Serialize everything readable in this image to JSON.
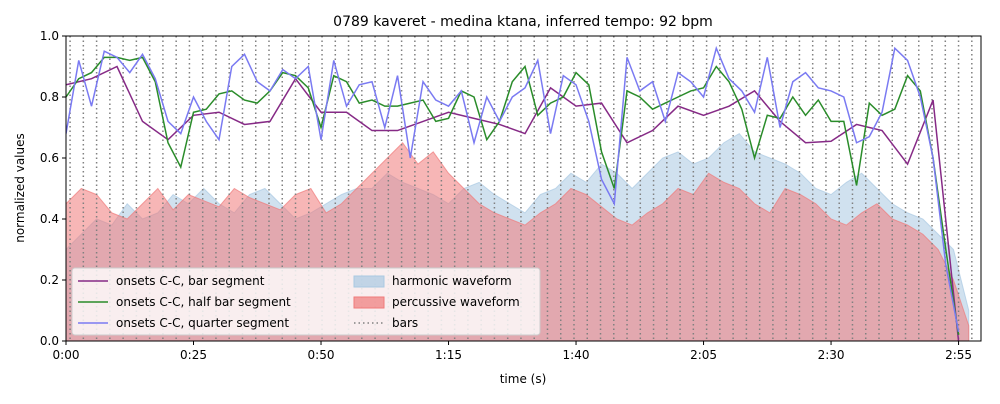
{
  "chart_data": {
    "type": "line",
    "title": "0789 kaveret - medina ktana, inferred tempo: 92 bpm",
    "xlabel": "time (s)",
    "ylabel": "normalized values",
    "xlim": [
      0,
      179.4
    ],
    "ylim": [
      0,
      1
    ],
    "xticks": [
      {
        "value": 0,
        "label": "0:00"
      },
      {
        "value": 25,
        "label": "0:25"
      },
      {
        "value": 50,
        "label": "0:50"
      },
      {
        "value": 75,
        "label": "1:15"
      },
      {
        "value": 100,
        "label": "1:40"
      },
      {
        "value": 125,
        "label": "2:05"
      },
      {
        "value": 150,
        "label": "2:30"
      },
      {
        "value": 175,
        "label": "2:55"
      }
    ],
    "yticks": [
      {
        "value": 0,
        "label": "0.0"
      },
      {
        "value": 0.2,
        "label": "0.2"
      },
      {
        "value": 0.4,
        "label": "0.4"
      },
      {
        "value": 0.6,
        "label": "0.6"
      },
      {
        "value": 0.8,
        "label": "0.8"
      },
      {
        "value": 1,
        "label": "1.0"
      }
    ],
    "legend": "lower left",
    "series": [
      {
        "name": "onsets C-C, bar segment",
        "style": "line",
        "color": "#862a86",
        "x": [
          0,
          5,
          10,
          15,
          20,
          25,
          30,
          35,
          40,
          45,
          50,
          55,
          60,
          65,
          70,
          75,
          80,
          85,
          90,
          95,
          100,
          105,
          110,
          115,
          120,
          125,
          130,
          135,
          140,
          145,
          150,
          155,
          160,
          165,
          170,
          175
        ],
        "values": [
          0.84,
          0.86,
          0.9,
          0.72,
          0.66,
          0.74,
          0.75,
          0.71,
          0.72,
          0.86,
          0.75,
          0.75,
          0.69,
          0.69,
          0.72,
          0.75,
          0.73,
          0.71,
          0.68,
          0.83,
          0.77,
          0.78,
          0.65,
          0.69,
          0.77,
          0.74,
          0.77,
          0.82,
          0.72,
          0.65,
          0.655,
          0.71,
          0.69,
          0.58,
          0.79,
          0.0
        ]
      },
      {
        "name": "onsets C-C, half bar segment",
        "style": "line",
        "color": "#2a8c2a",
        "x": [
          0,
          2.5,
          5,
          7.5,
          10,
          12.5,
          15,
          17.5,
          20,
          22.5,
          25,
          27.5,
          30,
          32.5,
          35,
          37.5,
          40,
          42.5,
          45,
          47.5,
          50,
          52.5,
          55,
          57.5,
          60,
          62.5,
          65,
          67.5,
          70,
          72.5,
          75,
          77.5,
          80,
          82.5,
          85,
          87.5,
          90,
          92.5,
          95,
          97.5,
          100,
          102.5,
          105,
          107.5,
          110,
          112.5,
          115,
          117.5,
          120,
          122.5,
          125,
          127.5,
          130,
          132.5,
          135,
          137.5,
          140,
          142.5,
          145,
          147.5,
          150,
          152.5,
          155,
          157.5,
          160,
          162.5,
          165,
          167.5,
          170,
          172.5,
          175
        ],
        "values": [
          0.8,
          0.86,
          0.88,
          0.93,
          0.93,
          0.92,
          0.93,
          0.85,
          0.65,
          0.57,
          0.75,
          0.76,
          0.81,
          0.82,
          0.79,
          0.78,
          0.82,
          0.88,
          0.87,
          0.83,
          0.7,
          0.87,
          0.85,
          0.78,
          0.79,
          0.77,
          0.77,
          0.78,
          0.79,
          0.72,
          0.73,
          0.82,
          0.8,
          0.66,
          0.72,
          0.85,
          0.9,
          0.74,
          0.78,
          0.8,
          0.88,
          0.84,
          0.62,
          0.5,
          0.82,
          0.8,
          0.76,
          0.78,
          0.8,
          0.82,
          0.83,
          0.9,
          0.85,
          0.76,
          0.6,
          0.74,
          0.73,
          0.8,
          0.74,
          0.79,
          0.72,
          0.72,
          0.51,
          0.78,
          0.74,
          0.76,
          0.87,
          0.82,
          0.6,
          0.3,
          0.02
        ]
      },
      {
        "name": "onsets C-C, quarter segment",
        "style": "line",
        "color": "#7a7af2",
        "x": [
          0,
          2.5,
          5,
          7.5,
          10,
          12.5,
          15,
          17.5,
          20,
          22.5,
          25,
          27.5,
          30,
          32.5,
          35,
          37.5,
          40,
          42.5,
          45,
          47.5,
          50,
          52.5,
          55,
          57.5,
          60,
          62.5,
          65,
          67.5,
          70,
          72.5,
          75,
          77.5,
          80,
          82.5,
          85,
          87.5,
          90,
          92.5,
          95,
          97.5,
          100,
          102.5,
          105,
          107.5,
          110,
          112.5,
          115,
          117.5,
          120,
          122.5,
          125,
          127.5,
          130,
          132.5,
          135,
          137.5,
          140,
          142.5,
          145,
          147.5,
          150,
          152.5,
          155,
          157.5,
          160,
          162.5,
          165,
          167.5,
          170,
          172.5,
          175
        ],
        "values": [
          0.68,
          0.92,
          0.77,
          0.95,
          0.93,
          0.88,
          0.94,
          0.86,
          0.72,
          0.68,
          0.8,
          0.72,
          0.66,
          0.9,
          0.94,
          0.85,
          0.82,
          0.89,
          0.86,
          0.9,
          0.66,
          0.92,
          0.77,
          0.84,
          0.85,
          0.7,
          0.87,
          0.6,
          0.85,
          0.79,
          0.77,
          0.82,
          0.65,
          0.8,
          0.72,
          0.8,
          0.83,
          0.92,
          0.68,
          0.87,
          0.84,
          0.72,
          0.53,
          0.45,
          0.93,
          0.82,
          0.85,
          0.72,
          0.88,
          0.85,
          0.8,
          0.96,
          0.86,
          0.82,
          0.75,
          0.93,
          0.7,
          0.85,
          0.88,
          0.83,
          0.82,
          0.8,
          0.65,
          0.67,
          0.75,
          0.96,
          0.92,
          0.8,
          0.6,
          0.25,
          0.03
        ]
      },
      {
        "name": "harmonic waveform",
        "style": "fill",
        "color": "#a9c9e2",
        "x": [
          0,
          3,
          6,
          9,
          12,
          15,
          18,
          21,
          24,
          27,
          30,
          33,
          36,
          39,
          42,
          45,
          48,
          51,
          54,
          57,
          60,
          63,
          66,
          69,
          72,
          75,
          78,
          81,
          84,
          87,
          90,
          93,
          96,
          99,
          102,
          105,
          108,
          111,
          114,
          117,
          120,
          123,
          126,
          129,
          132,
          135,
          138,
          141,
          144,
          147,
          150,
          153,
          156,
          159,
          162,
          165,
          168,
          171,
          174,
          177
        ],
        "values": [
          0.3,
          0.35,
          0.4,
          0.38,
          0.45,
          0.4,
          0.42,
          0.48,
          0.45,
          0.5,
          0.45,
          0.42,
          0.48,
          0.5,
          0.45,
          0.4,
          0.42,
          0.45,
          0.48,
          0.5,
          0.5,
          0.55,
          0.52,
          0.5,
          0.48,
          0.45,
          0.5,
          0.52,
          0.48,
          0.45,
          0.42,
          0.48,
          0.5,
          0.55,
          0.52,
          0.58,
          0.55,
          0.5,
          0.55,
          0.6,
          0.62,
          0.58,
          0.6,
          0.65,
          0.68,
          0.62,
          0.6,
          0.58,
          0.55,
          0.5,
          0.48,
          0.52,
          0.55,
          0.5,
          0.45,
          0.42,
          0.4,
          0.35,
          0.3,
          0.1
        ]
      },
      {
        "name": "percussive waveform",
        "style": "fill",
        "color": "#f07a7a",
        "x": [
          0,
          3,
          6,
          9,
          12,
          15,
          18,
          21,
          24,
          27,
          30,
          33,
          36,
          39,
          42,
          45,
          48,
          51,
          54,
          57,
          60,
          63,
          66,
          69,
          72,
          75,
          78,
          81,
          84,
          87,
          90,
          93,
          96,
          99,
          102,
          105,
          108,
          111,
          114,
          117,
          120,
          123,
          126,
          129,
          132,
          135,
          138,
          141,
          144,
          147,
          150,
          153,
          156,
          159,
          162,
          165,
          168,
          171,
          174,
          177
        ],
        "values": [
          0.45,
          0.5,
          0.48,
          0.42,
          0.4,
          0.45,
          0.5,
          0.43,
          0.48,
          0.46,
          0.44,
          0.5,
          0.47,
          0.45,
          0.43,
          0.48,
          0.5,
          0.42,
          0.45,
          0.5,
          0.55,
          0.6,
          0.65,
          0.58,
          0.62,
          0.55,
          0.5,
          0.45,
          0.42,
          0.4,
          0.38,
          0.42,
          0.45,
          0.5,
          0.48,
          0.44,
          0.4,
          0.38,
          0.42,
          0.45,
          0.5,
          0.48,
          0.55,
          0.52,
          0.5,
          0.45,
          0.42,
          0.5,
          0.48,
          0.45,
          0.4,
          0.38,
          0.42,
          0.45,
          0.4,
          0.38,
          0.35,
          0.3,
          0.2,
          0.05
        ]
      },
      {
        "name": "bars",
        "style": "vline",
        "color": "#808080",
        "x": [
          0.8,
          3.4,
          6.0,
          8.6,
          11.2,
          13.8,
          16.4,
          19.0,
          21.6,
          24.2,
          26.8,
          29.4,
          32.0,
          34.6,
          37.2,
          39.8,
          42.4,
          45.0,
          47.6,
          50.2,
          52.8,
          55.4,
          58.0,
          60.6,
          63.2,
          65.8,
          68.4,
          71.0,
          73.6,
          76.2,
          78.8,
          81.4,
          84.0,
          86.6,
          89.2,
          91.8,
          94.4,
          97.0,
          99.6,
          102.2,
          104.8,
          107.4,
          110.0,
          112.6,
          115.2,
          117.8,
          120.4,
          123.0,
          125.6,
          128.2,
          130.8,
          133.4,
          136.0,
          138.6,
          141.2,
          143.8,
          146.4,
          149.0,
          151.6,
          154.2,
          156.8,
          159.4,
          162.0,
          164.6,
          167.2,
          169.8,
          172.4,
          175.0,
          177.6
        ]
      }
    ]
  }
}
